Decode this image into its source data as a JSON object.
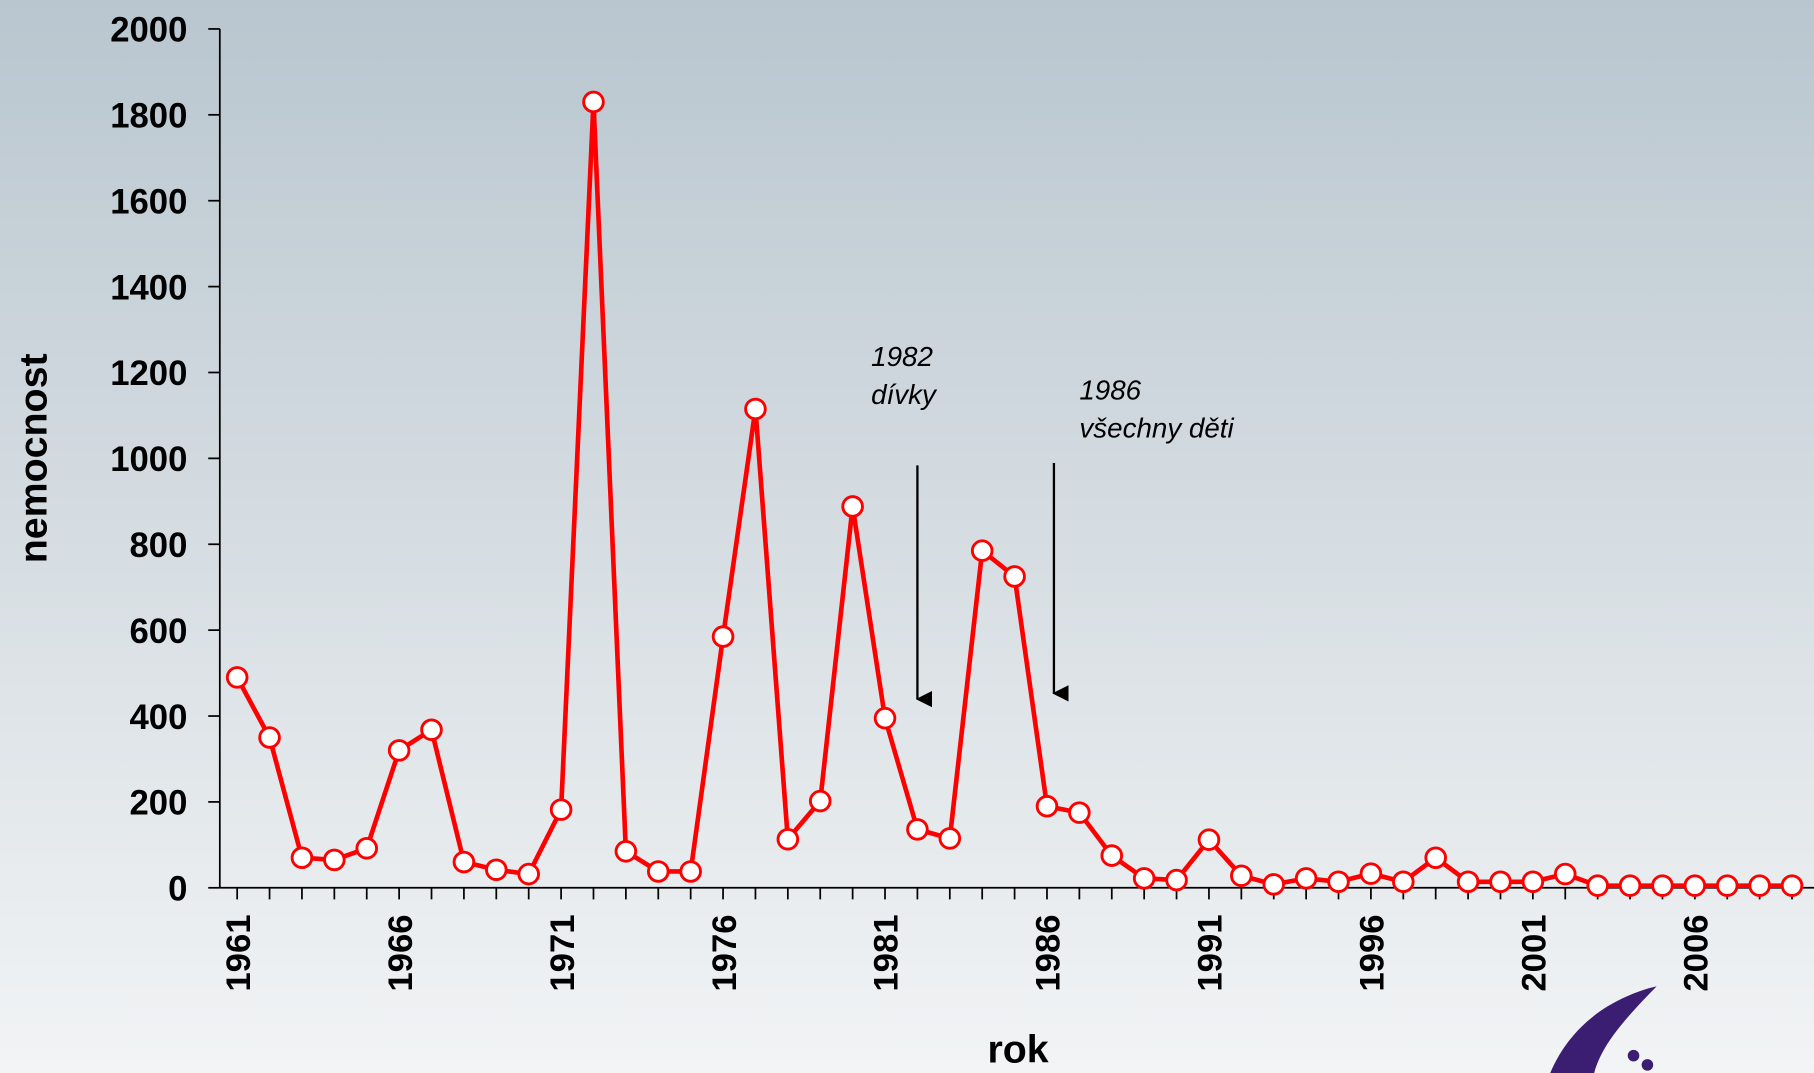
{
  "chart_data": {
    "type": "line",
    "x_label": "rok",
    "y_label": "nemocnost",
    "categories": [
      "1961",
      null,
      null,
      null,
      null,
      "1966",
      null,
      null,
      null,
      null,
      "1971",
      null,
      null,
      null,
      null,
      "1976",
      null,
      null,
      null,
      null,
      "1981",
      null,
      null,
      null,
      null,
      "1986",
      null,
      null,
      null,
      null,
      "1991",
      null,
      null,
      null,
      null,
      "1996",
      null,
      null,
      null,
      null,
      "2001",
      null,
      null,
      null,
      null,
      "2006",
      null,
      null,
      null
    ],
    "series": [
      {
        "name": "nemocnost",
        "color": "#ff0000",
        "values": [
          490,
          350,
          70,
          65,
          92,
          320,
          368,
          60,
          42,
          32,
          182,
          1830,
          85,
          38,
          38,
          585,
          1115,
          113,
          202,
          888,
          395,
          136,
          115,
          785,
          725,
          190,
          175,
          75,
          22,
          18,
          112,
          28,
          8,
          22,
          14,
          33,
          14,
          70,
          14,
          14,
          14,
          32,
          5,
          5,
          5,
          5,
          5,
          5,
          5
        ]
      }
    ],
    "ylim": [
      0,
      2000
    ],
    "yticks": [
      0,
      200,
      400,
      600,
      800,
      1000,
      1200,
      1400,
      1600,
      1800,
      2000
    ],
    "annotations": [
      {
        "lines": [
          "1982",
          "dívky"
        ]
      },
      {
        "lines": [
          "1986",
          "všechny děti"
        ]
      }
    ]
  }
}
